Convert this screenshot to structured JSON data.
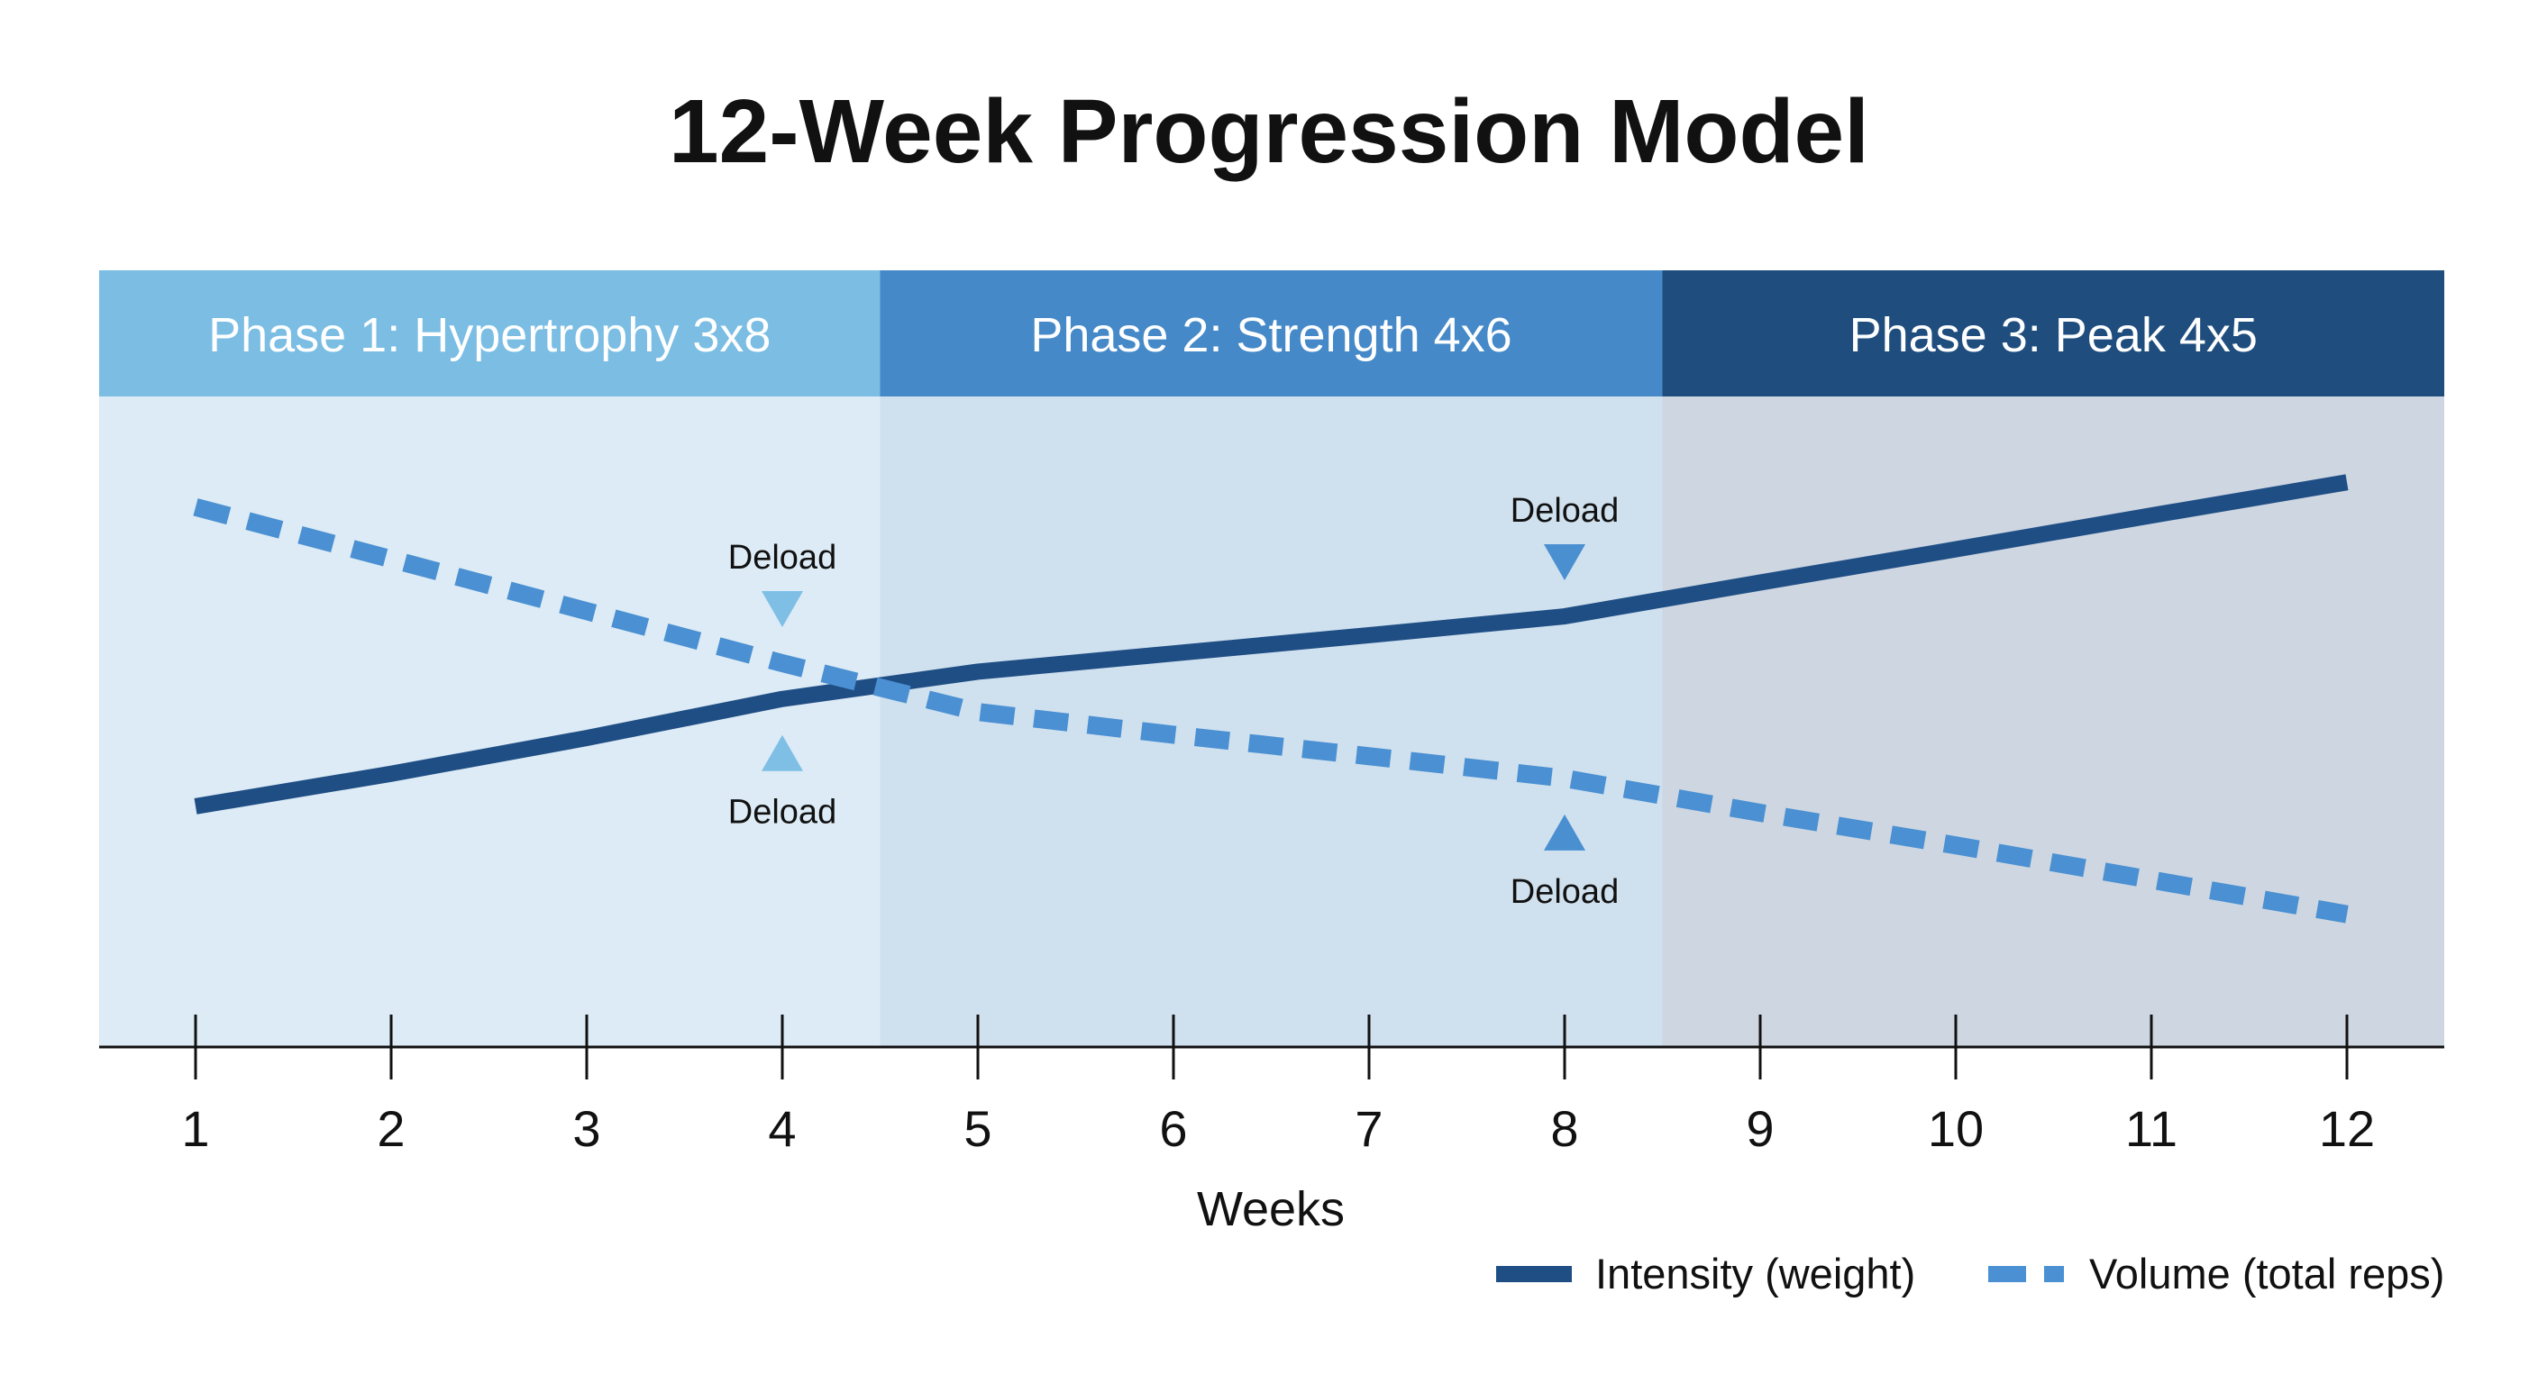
{
  "chart_data": {
    "type": "line",
    "title": "12-Week Progression Model",
    "xlabel": "Weeks",
    "ylabel": "",
    "x": [
      1,
      2,
      3,
      4,
      5,
      6,
      7,
      8,
      9,
      10,
      11,
      12
    ],
    "ylim": [
      0,
      100
    ],
    "grid": false,
    "legend_placement": "bottom-right",
    "series": [
      {
        "name": "Intensity (weight)",
        "style": "solid",
        "color": "#1f4e85",
        "values": [
          37,
          42,
          47.5,
          53.5,
          57.7,
          60.5,
          63.3,
          66.2,
          71.4,
          76.5,
          81.7,
          86.8
        ]
      },
      {
        "name": "Volume (total reps)",
        "style": "dashed",
        "color": "#4a90d2",
        "values": [
          83,
          75,
          67,
          59,
          51.5,
          48,
          44.7,
          41.3,
          36,
          31,
          25.7,
          20.4
        ]
      }
    ],
    "phases": [
      {
        "label": "Phase 1: Hypertrophy 3x8",
        "start": 0.5,
        "end": 4.5,
        "header_color": "#7bbde3",
        "band_color": "#dcebf5"
      },
      {
        "label": "Phase 2: Strength 4x6",
        "start": 4.5,
        "end": 8.5,
        "header_color": "#4689c8",
        "band_color": "#cfe0ee"
      },
      {
        "label": "Phase 3: Peak 4x5",
        "start": 8.5,
        "end": 12.5,
        "header_color": "#1f4e7e",
        "band_color": "#cdd6e1"
      }
    ],
    "annotations": [
      {
        "text": "Deload",
        "week": 4,
        "series": "Intensity (weight)",
        "position": "above-volume",
        "marker": "down",
        "color": "#7fbfe6"
      },
      {
        "text": "Deload",
        "week": 4,
        "series": "Intensity (weight)",
        "position": "below",
        "marker": "up",
        "color": "#7fbfe6"
      },
      {
        "text": "Deload",
        "week": 8,
        "series": "Intensity (weight)",
        "position": "above",
        "marker": "down",
        "color": "#4a8fd0"
      },
      {
        "text": "Deload",
        "week": 8,
        "series": "Volume (total reps)",
        "position": "below",
        "marker": "up",
        "color": "#4a8fd0"
      }
    ]
  }
}
